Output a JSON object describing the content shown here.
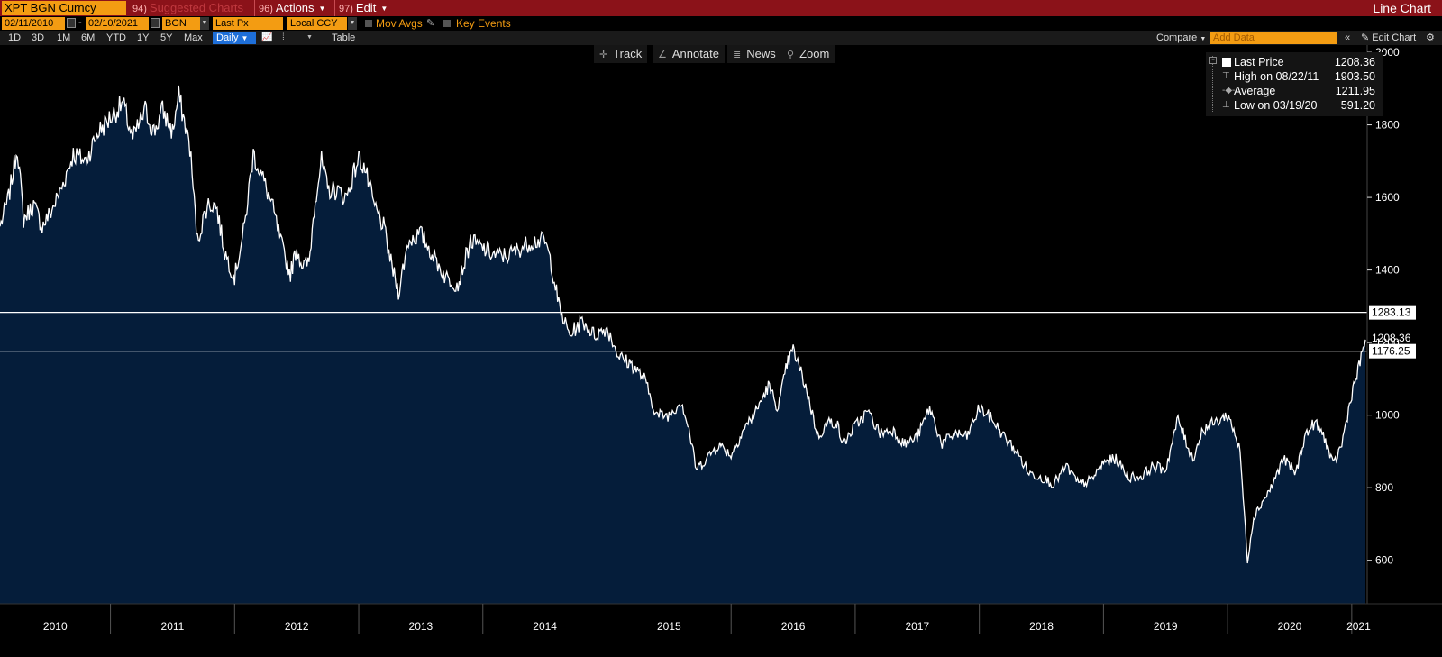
{
  "titlebar": {
    "security": "XPT BGN Curncy",
    "suggested_num": "94)",
    "suggested_label": "Suggested Charts",
    "actions_num": "96)",
    "actions_label": "Actions",
    "edit_num": "97)",
    "edit_label": "Edit",
    "chart_type": "Line Chart"
  },
  "controls": {
    "start_date": "02/11/2010",
    "end_date": "02/10/2021",
    "source": "BGN",
    "field": "Last Px",
    "currency": "Local CCY",
    "mov_avgs": "Mov Avgs",
    "key_events": "Key Events"
  },
  "periods": [
    "1D",
    "3D",
    "1M",
    "6M",
    "YTD",
    "1Y",
    "5Y",
    "Max"
  ],
  "frequency": "Daily",
  "table_label": "Table",
  "compare_label": "Compare",
  "add_data_placeholder": "Add Data",
  "edit_chart_label": "Edit Chart",
  "chart_toolbar": {
    "track": "Track",
    "annotate": "Annotate",
    "news": "News",
    "zoom": "Zoom"
  },
  "legend": {
    "rows": [
      {
        "name": "Last Price",
        "value": "1208.36"
      },
      {
        "name": "High on 08/22/11",
        "value": "1903.50"
      },
      {
        "name": "Average",
        "value": "1211.95"
      },
      {
        "name": "Low on 03/19/20",
        "value": "591.20"
      }
    ]
  },
  "colors": {
    "titlebar": "#8b1219",
    "accent": "#f39c12",
    "area_fill": "#051d3a",
    "line": "#ffffff"
  },
  "chart_data": {
    "type": "area",
    "ylim": [
      480,
      2020
    ],
    "yticks": [
      600,
      800,
      1000,
      1200,
      1400,
      1600,
      1800,
      2000
    ],
    "ytick_labels": [
      "600",
      "800",
      "1000",
      "1200",
      "1400",
      "1600",
      "1800",
      "2000"
    ],
    "xlim": [
      2010.11,
      2021.11
    ],
    "year_labels": [
      "2010",
      "2011",
      "2012",
      "2013",
      "2014",
      "2015",
      "2016",
      "2017",
      "2018",
      "2019",
      "2020",
      "2021"
    ],
    "hlines": [
      {
        "value": 1283.13,
        "label": "1283.13"
      },
      {
        "value": 1176.25,
        "label": "1176.25"
      }
    ],
    "last_value": {
      "value": 1208.36,
      "label": "1208.36"
    },
    "series": [
      {
        "x": [
          2010.11,
          2010.18,
          2010.25,
          2010.3,
          2010.38,
          2010.45,
          2010.52,
          2010.6,
          2010.7,
          2010.8,
          2010.9,
          2011.0,
          2011.1,
          2011.18,
          2011.28,
          2011.35,
          2011.42,
          2011.5,
          2011.55,
          2011.64,
          2011.7,
          2011.78,
          2011.85,
          2011.92,
          2012.0,
          2012.08,
          2012.15,
          2012.22,
          2012.3,
          2012.4,
          2012.45,
          2012.5,
          2012.55,
          2012.6,
          2012.65,
          2012.7,
          2012.75,
          2012.82,
          2012.9,
          2013.0,
          2013.05,
          2013.12,
          2013.2,
          2013.26,
          2013.32,
          2013.4,
          2013.5,
          2013.6,
          2013.7,
          2013.8,
          2013.9,
          2014.0,
          2014.1,
          2014.2,
          2014.3,
          2014.4,
          2014.5,
          2014.55,
          2014.62,
          2014.7,
          2014.8,
          2014.9,
          2015.0,
          2015.1,
          2015.2,
          2015.3,
          2015.4,
          2015.5,
          2015.6,
          2015.66,
          2015.72,
          2015.8,
          2015.9,
          2016.0,
          2016.1,
          2016.2,
          2016.3,
          2016.38,
          2016.45,
          2016.5,
          2016.6,
          2016.7,
          2016.78,
          2016.85,
          2016.9,
          2017.0,
          2017.1,
          2017.2,
          2017.3,
          2017.4,
          2017.5,
          2017.6,
          2017.7,
          2017.8,
          2017.9,
          2018.0,
          2018.1,
          2018.2,
          2018.3,
          2018.4,
          2018.5,
          2018.6,
          2018.7,
          2018.8,
          2018.9,
          2019.0,
          2019.1,
          2019.2,
          2019.3,
          2019.4,
          2019.5,
          2019.6,
          2019.65,
          2019.72,
          2019.8,
          2019.9,
          2020.0,
          2020.05,
          2020.1,
          2020.16,
          2020.21,
          2020.26,
          2020.35,
          2020.45,
          2020.55,
          2020.62,
          2020.7,
          2020.78,
          2020.85,
          2020.92,
          2021.0,
          2021.05,
          2021.11
        ],
        "values": [
          1520,
          1600,
          1740,
          1540,
          1580,
          1520,
          1560,
          1620,
          1720,
          1700,
          1780,
          1820,
          1860,
          1760,
          1840,
          1780,
          1840,
          1780,
          1880,
          1740,
          1480,
          1580,
          1580,
          1450,
          1380,
          1520,
          1720,
          1660,
          1580,
          1440,
          1390,
          1460,
          1410,
          1420,
          1600,
          1700,
          1620,
          1620,
          1600,
          1710,
          1680,
          1580,
          1520,
          1420,
          1340,
          1480,
          1500,
          1440,
          1380,
          1360,
          1480,
          1460,
          1440,
          1440,
          1460,
          1480,
          1480,
          1420,
          1290,
          1220,
          1260,
          1220,
          1240,
          1160,
          1140,
          1100,
          1000,
          1000,
          1040,
          960,
          850,
          880,
          920,
          890,
          960,
          1010,
          1080,
          1020,
          1140,
          1180,
          1080,
          940,
          980,
          980,
          920,
          970,
          1010,
          950,
          960,
          920,
          940,
          1020,
          920,
          950,
          940,
          1020,
          990,
          940,
          900,
          840,
          830,
          810,
          860,
          810,
          820,
          870,
          880,
          830,
          830,
          860,
          850,
          990,
          940,
          880,
          960,
          980,
          1000,
          960,
          900,
          600,
          720,
          750,
          800,
          880,
          840,
          940,
          980,
          940,
          860,
          920,
          1060,
          1120,
          1208
        ]
      }
    ]
  }
}
